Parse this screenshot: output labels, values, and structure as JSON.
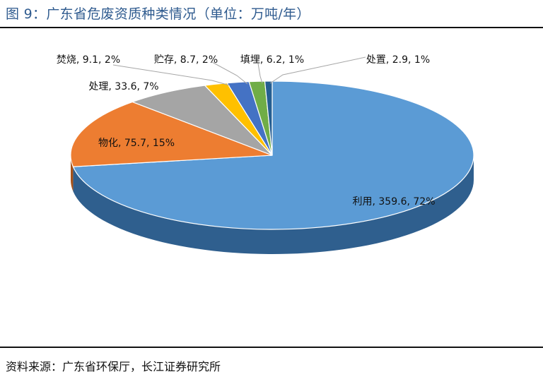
{
  "header": {
    "title": "图 9：广东省危废资质种类情况（单位：万吨/年）"
  },
  "footer": {
    "source": "资料来源：广东省环保厅，长江证券研究所"
  },
  "chart_data": {
    "type": "pie",
    "title": "图 9：广东省危废资质种类情况（单位：万吨/年）",
    "unit": "万吨/年",
    "style": "3d",
    "slices": [
      {
        "name": "利用",
        "value": 359.6,
        "percent": "72%",
        "label": "利用, 359.6, 72%",
        "color": "#5b9bd5",
        "side": "#2f5f8e"
      },
      {
        "name": "物化",
        "value": 75.7,
        "percent": "15%",
        "label": "物化, 75.7, 15%",
        "color": "#ed7d31",
        "side": "#a5521b"
      },
      {
        "name": "处理",
        "value": 33.6,
        "percent": "7%",
        "label": "处理, 33.6, 7%",
        "color": "#a5a5a5",
        "side": "#6d6d6d"
      },
      {
        "name": "焚烧",
        "value": 9.1,
        "percent": "2%",
        "label": "焚烧, 9.1, 2%",
        "color": "#ffc000",
        "side": "#b38600"
      },
      {
        "name": "贮存",
        "value": 8.7,
        "percent": "2%",
        "label": "贮存, 8.7, 2%",
        "color": "#4472c4",
        "side": "#2a4a85"
      },
      {
        "name": "填埋",
        "value": 6.2,
        "percent": "1%",
        "label": "填埋, 6.2, 1%",
        "color": "#70ad47",
        "side": "#4a7a2c"
      },
      {
        "name": "处置",
        "value": 2.9,
        "percent": "1%",
        "label": "处置, 2.9, 1%",
        "color": "#255e91",
        "side": "#173d5f"
      }
    ]
  }
}
